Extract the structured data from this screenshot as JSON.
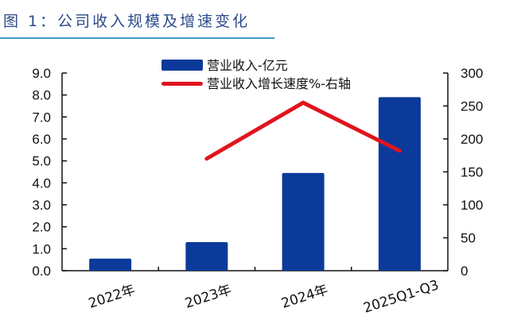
{
  "title": "图 1：公司收入规模及增速变化",
  "colors": {
    "bar": "#0b3a9a",
    "line": "#e0141e",
    "title": "#2b4c8c",
    "rule": "#3f9fc0"
  },
  "chart_data": {
    "type": "bar",
    "title": "图 1：公司收入规模及增速变化",
    "categories": [
      "2022年",
      "2023年",
      "2024年",
      "2025Q1-Q3"
    ],
    "series": [
      {
        "name": "营业收入-亿元",
        "type": "bar",
        "axis": "left",
        "values": [
          0.55,
          1.3,
          4.45,
          7.9
        ]
      },
      {
        "name": "营业收入增长速度%-右轴",
        "type": "line",
        "axis": "right",
        "values": [
          null,
          170,
          255,
          182
        ]
      }
    ],
    "left_axis": {
      "ylim": [
        0,
        9
      ],
      "ticks": [
        "0.0",
        "1.0",
        "2.0",
        "3.0",
        "4.0",
        "5.0",
        "6.0",
        "7.0",
        "8.0",
        "9.0"
      ]
    },
    "right_axis": {
      "ylim": [
        0,
        300
      ],
      "ticks": [
        "0",
        "50",
        "100",
        "150",
        "200",
        "250",
        "300"
      ]
    },
    "xlabel": "",
    "ylabel": "",
    "grid": false,
    "legend_position": "top-center"
  },
  "legend": {
    "bar_label": "营业收入-亿元",
    "line_label": "营业收入增长速度%-右轴"
  }
}
